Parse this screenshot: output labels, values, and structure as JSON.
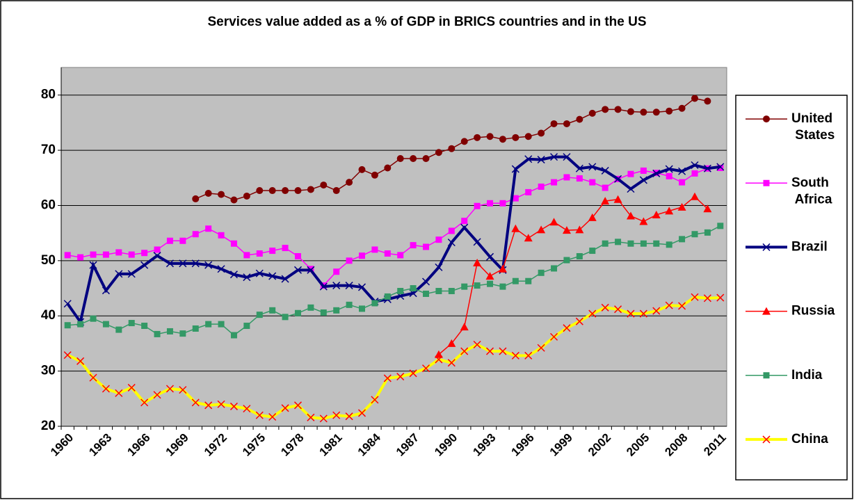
{
  "chart_data": {
    "type": "line",
    "title": "Services value added as a % of GDP in BRICS countries and in the US",
    "categories": [
      "1960",
      null,
      null,
      "1963",
      null,
      null,
      "1966",
      null,
      null,
      "1969",
      null,
      null,
      "1972",
      null,
      null,
      "1975",
      null,
      null,
      "1978",
      null,
      null,
      "1981",
      null,
      null,
      "1984",
      null,
      null,
      "1987",
      null,
      null,
      "1990",
      null,
      null,
      "1993",
      null,
      null,
      "1996",
      null,
      null,
      "1999",
      null,
      null,
      "2002",
      null,
      null,
      "2005",
      null,
      null,
      "2008",
      null,
      null,
      "2011"
    ],
    "ylim": [
      20,
      85
    ],
    "yticks": [
      20,
      30,
      40,
      50,
      60,
      70,
      80
    ],
    "grid": true,
    "legend": "right",
    "series": [
      {
        "name": "United States",
        "color": "#800000",
        "marker": "circle",
        "marker_color": "#800000",
        "line_width": 1.5,
        "values": [
          null,
          null,
          null,
          null,
          null,
          null,
          null,
          null,
          null,
          null,
          61.2,
          62.2,
          62.0,
          61.0,
          61.7,
          62.7,
          62.7,
          62.7,
          62.7,
          62.9,
          63.7,
          62.7,
          64.2,
          66.5,
          65.5,
          66.8,
          68.5,
          68.5,
          68.5,
          69.6,
          70.3,
          71.6,
          72.3,
          72.5,
          72.0,
          72.3,
          72.5,
          73.1,
          74.8,
          74.8,
          75.6,
          76.7,
          77.4,
          77.4,
          77.0,
          76.9,
          76.9,
          77.1,
          77.6,
          79.4,
          78.9,
          null
        ]
      },
      {
        "name": "South Africa",
        "color": "#ff00ff",
        "marker": "square",
        "marker_color": "#ff00ff",
        "line_width": 1.5,
        "values": [
          51.0,
          50.6,
          51.1,
          51.1,
          51.5,
          51.1,
          51.4,
          52.0,
          53.6,
          53.6,
          54.8,
          55.8,
          54.6,
          53.1,
          51.0,
          51.3,
          51.8,
          52.3,
          50.8,
          48.5,
          45.5,
          48.0,
          50.0,
          50.9,
          52.0,
          51.3,
          51.0,
          52.8,
          52.5,
          53.8,
          55.4,
          57.2,
          59.9,
          60.4,
          60.4,
          61.3,
          62.4,
          63.4,
          64.2,
          65.1,
          64.9,
          64.2,
          63.2,
          64.8,
          65.7,
          66.3,
          65.9,
          65.3,
          64.2,
          65.8,
          66.7,
          66.8
        ]
      },
      {
        "name": "Brazil",
        "color": "#000080",
        "marker": "cross",
        "marker_color": "#000080",
        "line_width": 4,
        "values": [
          42.2,
          38.9,
          49.2,
          44.6,
          47.6,
          47.6,
          49.2,
          50.9,
          49.5,
          49.5,
          49.5,
          49.2,
          48.5,
          47.5,
          47.0,
          47.7,
          47.2,
          46.7,
          48.3,
          48.3,
          45.3,
          45.5,
          45.5,
          45.2,
          42.6,
          43.0,
          43.6,
          44.1,
          46.2,
          48.8,
          53.3,
          56.0,
          53.4,
          50.7,
          48.3,
          66.6,
          68.4,
          68.3,
          68.8,
          68.8,
          66.7,
          67.0,
          66.3,
          64.8,
          63.0,
          64.6,
          65.8,
          66.6,
          66.2,
          67.3,
          66.7,
          67.0
        ]
      },
      {
        "name": "Russia",
        "color": "#ff0000",
        "marker": "triangle",
        "marker_color": "#ff0000",
        "line_width": 1.5,
        "values": [
          null,
          null,
          null,
          null,
          null,
          null,
          null,
          null,
          null,
          null,
          null,
          null,
          null,
          null,
          null,
          null,
          null,
          null,
          null,
          null,
          null,
          null,
          null,
          null,
          null,
          null,
          null,
          null,
          null,
          33.0,
          35.0,
          38.0,
          49.6,
          47.2,
          48.5,
          55.8,
          54.1,
          55.6,
          57.0,
          55.5,
          55.6,
          57.8,
          60.8,
          61.1,
          58.1,
          57.1,
          58.3,
          59.0,
          59.7,
          61.6,
          59.4,
          null
        ]
      },
      {
        "name": "India",
        "color": "#339966",
        "marker": "square",
        "marker_color": "#339966",
        "line_width": 1.5,
        "values": [
          38.3,
          38.5,
          39.5,
          38.5,
          37.5,
          38.7,
          38.2,
          36.7,
          37.2,
          36.8,
          37.7,
          38.5,
          38.5,
          36.5,
          38.2,
          40.2,
          41.0,
          39.8,
          40.5,
          41.5,
          40.6,
          41.0,
          42.0,
          41.3,
          42.3,
          43.5,
          44.5,
          45.0,
          44.0,
          44.5,
          44.5,
          45.3,
          45.5,
          45.8,
          45.3,
          46.3,
          46.3,
          47.8,
          48.6,
          50.1,
          50.8,
          51.8,
          53.1,
          53.4,
          53.1,
          53.1,
          53.1,
          52.9,
          53.9,
          54.8,
          55.1,
          56.3
        ]
      },
      {
        "name": "China",
        "color": "#ffff00",
        "marker": "cross",
        "marker_color": "#ff0000",
        "line_width": 4,
        "values": [
          32.9,
          31.8,
          28.8,
          26.8,
          26.0,
          27.0,
          24.3,
          25.7,
          26.8,
          26.6,
          24.3,
          23.8,
          24.0,
          23.6,
          23.2,
          22.0,
          21.7,
          23.3,
          23.8,
          21.6,
          21.4,
          22.0,
          21.8,
          22.4,
          24.8,
          28.7,
          29.0,
          29.6,
          30.5,
          32.1,
          31.5,
          33.6,
          34.8,
          33.6,
          33.6,
          32.8,
          32.8,
          34.2,
          36.2,
          37.8,
          39.0,
          40.4,
          41.5,
          41.2,
          40.4,
          40.4,
          40.9,
          41.9,
          41.8,
          43.4,
          43.2,
          43.3
        ]
      }
    ]
  }
}
